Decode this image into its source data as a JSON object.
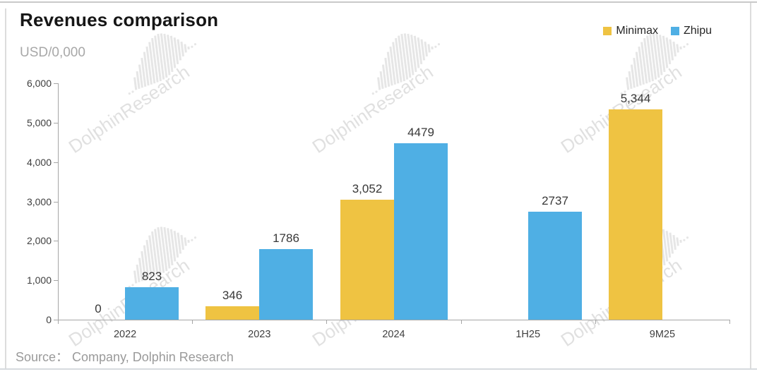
{
  "header": {
    "title": "Revenues comparison",
    "unit_label": "USD/0,000"
  },
  "legend": [
    {
      "label": "Minimax",
      "color": "#EFC342"
    },
    {
      "label": "Zhipu",
      "color": "#4FAFE4"
    }
  ],
  "watermark": {
    "text": "DolphinResearch"
  },
  "footer": {
    "source": "Source： Company, Dolphin Research"
  },
  "chart_data": {
    "type": "bar",
    "title": "Revenues comparison",
    "ylabel": "USD/0,000",
    "xlabel": "",
    "categories": [
      "2022",
      "2023",
      "2024",
      "1H25",
      "9M25"
    ],
    "series": [
      {
        "name": "Minimax",
        "color": "#EFC342",
        "values": [
          0,
          346,
          3052,
          null,
          5344
        ],
        "labels": [
          "0",
          "346",
          "3,052",
          null,
          "5,344"
        ]
      },
      {
        "name": "Zhipu",
        "color": "#4FAFE4",
        "values": [
          823,
          1786,
          4479,
          2737,
          null
        ],
        "labels": [
          "823",
          "1786",
          "4479",
          "2737",
          null
        ]
      }
    ],
    "ylim": [
      0,
      6000
    ],
    "ytick_step": 1000,
    "grid": false,
    "legend_position": "top-right"
  }
}
